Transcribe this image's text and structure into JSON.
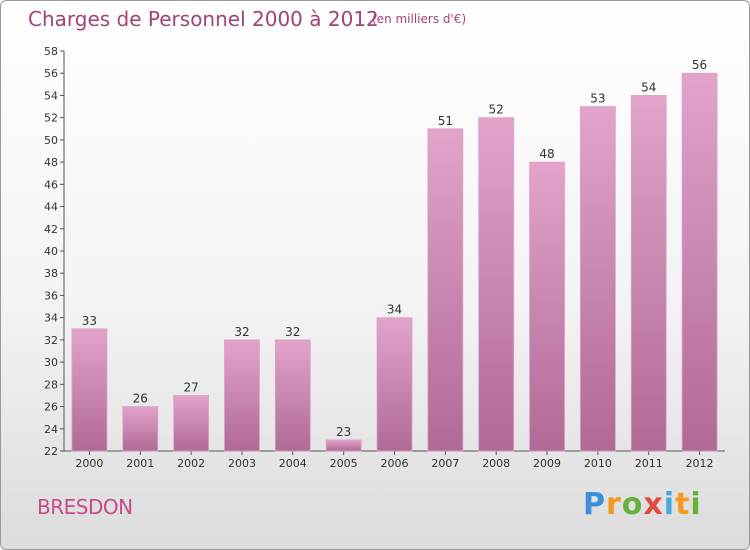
{
  "header": {
    "title": "Charges de Personnel 2000 à 2012",
    "subtitle": "(en milliers d'€)"
  },
  "footer": {
    "commune": "BRESDON",
    "logo": [
      "P",
      "r",
      "o",
      "x",
      "i",
      "t",
      "i"
    ]
  },
  "colors": {
    "bar_top": "#e3a3cb",
    "bar_bottom": "#b06a95",
    "title": "#a04478"
  },
  "chart_data": {
    "type": "bar",
    "title": "Charges de Personnel 2000 à 2012",
    "subtitle": "(en milliers d'€)",
    "categories": [
      "2000",
      "2001",
      "2002",
      "2003",
      "2004",
      "2005",
      "2006",
      "2007",
      "2008",
      "2009",
      "2010",
      "2011",
      "2012"
    ],
    "values": [
      33,
      26,
      27,
      32,
      32,
      23,
      34,
      51,
      52,
      48,
      53,
      54,
      56
    ],
    "ylim": [
      22,
      58
    ],
    "yticks": [
      22,
      24,
      26,
      28,
      30,
      32,
      34,
      36,
      38,
      40,
      42,
      44,
      46,
      48,
      50,
      52,
      54,
      56,
      58
    ],
    "grid": false,
    "data_labels": true
  }
}
